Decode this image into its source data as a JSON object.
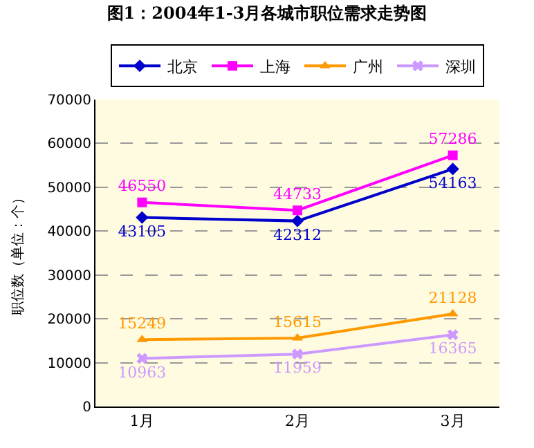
{
  "chart_data": {
    "type": "line",
    "title": "图1：2004年1-3月各城市职位需求走势图",
    "ylabel": "职位数（单位：个）",
    "categories": [
      "1月",
      "2月",
      "3月"
    ],
    "series": [
      {
        "name": "北京",
        "color": "#0000cc",
        "marker": "diamond",
        "values": [
          43105,
          42312,
          54163
        ]
      },
      {
        "name": "上海",
        "color": "#ff00ff",
        "marker": "square",
        "values": [
          46550,
          44733,
          57286
        ]
      },
      {
        "name": "广州",
        "color": "#ff9900",
        "marker": "triangle",
        "values": [
          15249,
          15615,
          21128
        ]
      },
      {
        "name": "深圳",
        "color": "#cc99ff",
        "marker": "cross",
        "values": [
          10963,
          11959,
          16365
        ]
      }
    ],
    "ylim": [
      0,
      70000
    ],
    "yticks": [
      0,
      10000,
      20000,
      30000,
      40000,
      50000,
      60000,
      70000
    ],
    "grid": "y",
    "legend": "top",
    "data_labels": true,
    "line_style": "solid"
  }
}
